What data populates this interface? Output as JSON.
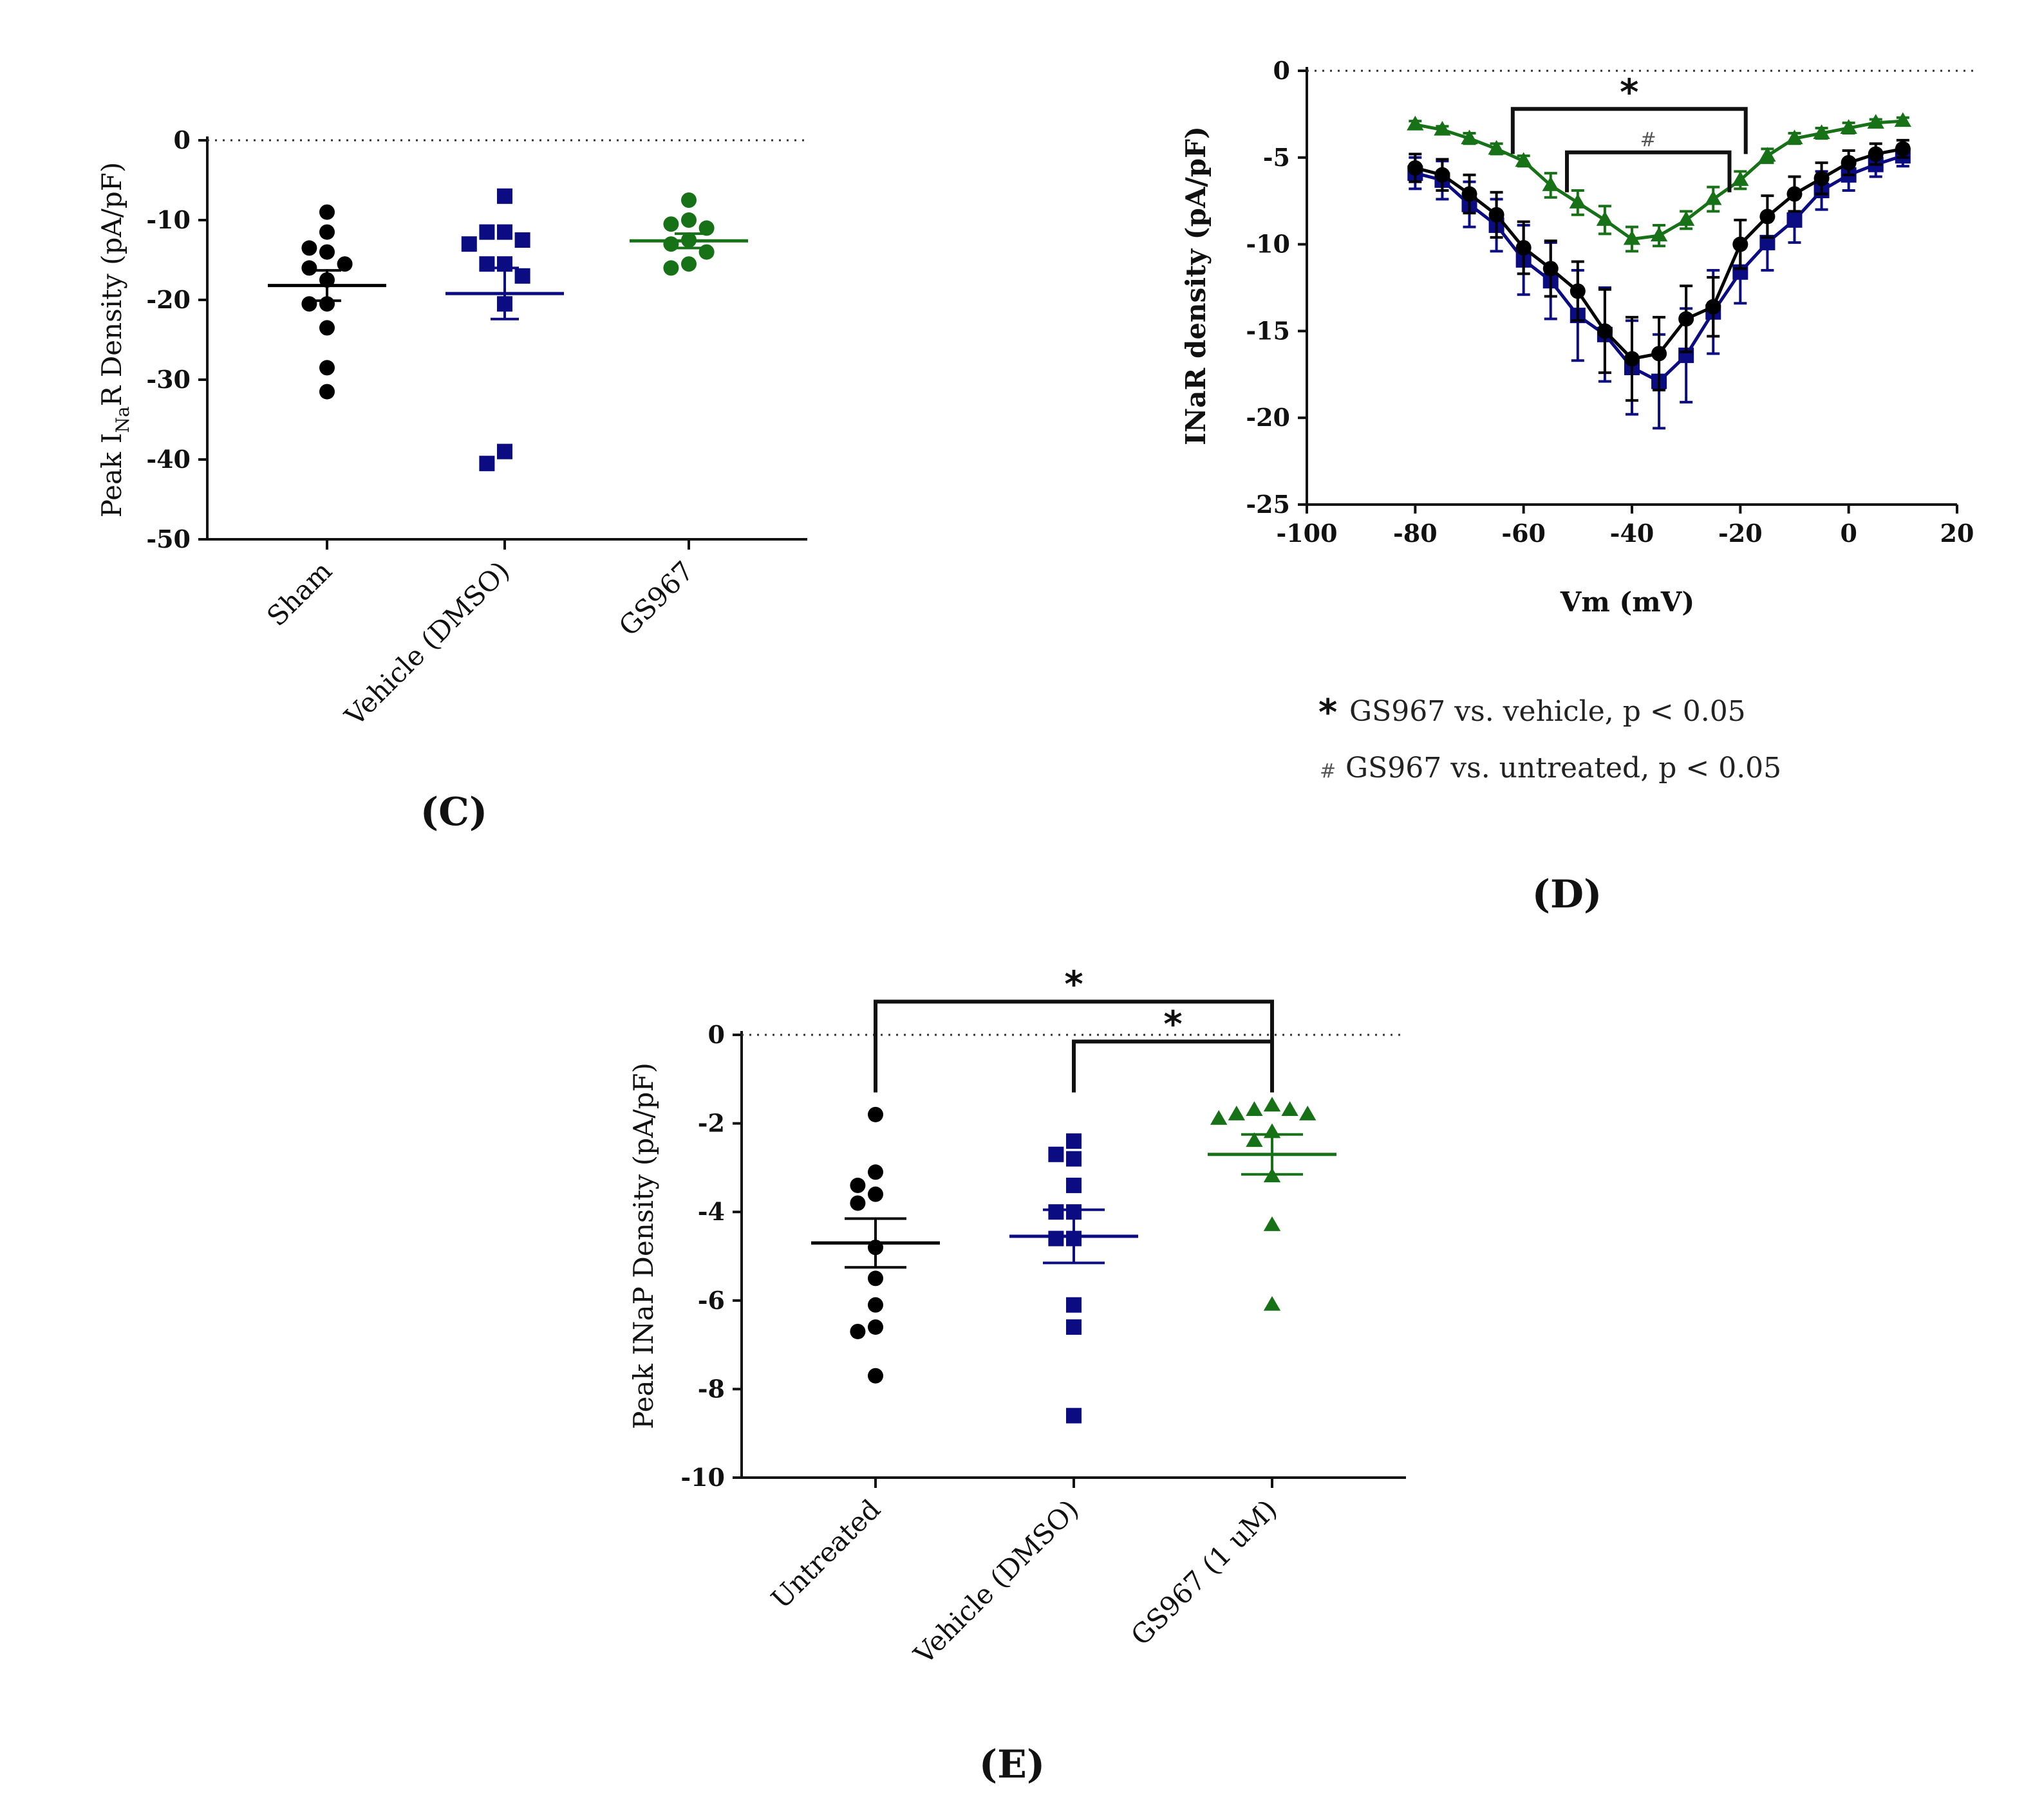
{
  "colors": {
    "sham": "#000000",
    "vehicle": "#0b0b82",
    "gs967": "#177117",
    "text": "#111111"
  },
  "chart_data": [
    {
      "id": "C",
      "panel_label": "(C)",
      "type": "scatter",
      "ylabel": "Peak I",
      "ylabel_sub": "Na",
      "ylabel_rest": "R Density (pA/pF)",
      "ylim": [
        -50,
        0
      ],
      "yticks": [
        0,
        -10,
        -20,
        -30,
        -40,
        -50
      ],
      "ytick_labels": [
        "0",
        "-10",
        "-20",
        "-30",
        "-40",
        "-50"
      ],
      "zero_line": "dotted",
      "categories": [
        "Sham",
        "Vehicle (DMSO)",
        "GS967"
      ],
      "series": [
        {
          "name": "Sham",
          "marker": "circle",
          "color_key": "sham",
          "values": [
            -9,
            -11.5,
            -13.5,
            -14,
            -15.5,
            -16,
            -17.5,
            -20.5,
            -20.5,
            -23.5,
            -28.5,
            -31.5
          ],
          "mean": -18.2,
          "sem": 1.9
        },
        {
          "name": "Vehicle (DMSO)",
          "marker": "square",
          "color_key": "vehicle",
          "values": [
            -7,
            -11.5,
            -11.5,
            -12.5,
            -13,
            -15.5,
            -15.5,
            -17,
            -20.5,
            -39,
            -40.5
          ],
          "mean": -19.2,
          "sem": 3.2
        },
        {
          "name": "GS967",
          "marker": "circle",
          "color_key": "gs967",
          "values": [
            -7.5,
            -10,
            -10.5,
            -11,
            -12.5,
            -13,
            -14,
            -15.5,
            -16
          ],
          "mean": -12.6,
          "sem": 0.9
        }
      ]
    },
    {
      "id": "D",
      "panel_label": "(D)",
      "type": "line",
      "xlabel": "Vm (mV)",
      "ylabel": "INaR density (pA/pF)",
      "xlim": [
        -100,
        20
      ],
      "ylim": [
        -25,
        0
      ],
      "xticks": [
        -100,
        -80,
        -60,
        -40,
        -20,
        0,
        20
      ],
      "xtick_labels": [
        "-100",
        "-80",
        "-60",
        "-40",
        "-20",
        "0",
        "20"
      ],
      "yticks": [
        0,
        -5,
        -10,
        -15,
        -20,
        -25
      ],
      "ytick_labels": [
        "0",
        "-5",
        "-10",
        "-15",
        "-20",
        "-25"
      ],
      "zero_line": "dotted",
      "x": [
        -80,
        -75,
        -70,
        -65,
        -60,
        -55,
        -50,
        -45,
        -40,
        -35,
        -30,
        -25,
        -20,
        -15,
        -10,
        -5,
        0,
        5,
        10
      ],
      "series": [
        {
          "name": "Vehicle (DMSO)",
          "marker": "square",
          "color_key": "vehicle",
          "values": [
            -5.9,
            -6.3,
            -7.7,
            -8.9,
            -10.9,
            -12.1,
            -14.1,
            -15.2,
            -17.1,
            -17.9,
            -16.4,
            -13.9,
            -11.6,
            -9.9,
            -8.6,
            -6.9,
            -6.0,
            -5.4,
            -4.9
          ],
          "errors": [
            0.9,
            1.1,
            1.3,
            1.5,
            2.0,
            2.2,
            2.6,
            2.7,
            2.7,
            2.7,
            2.7,
            2.4,
            1.8,
            1.6,
            1.3,
            1.1,
            0.9,
            0.7,
            0.6
          ]
        },
        {
          "name": "Untreated",
          "marker": "circle",
          "color_key": "sham",
          "values": [
            -5.6,
            -6.0,
            -7.1,
            -8.3,
            -10.2,
            -11.4,
            -12.7,
            -15.0,
            -16.6,
            -16.3,
            -14.3,
            -13.6,
            -10.0,
            -8.4,
            -7.1,
            -6.2,
            -5.3,
            -4.8,
            -4.5
          ],
          "errors": [
            0.8,
            0.9,
            1.1,
            1.3,
            1.5,
            1.6,
            1.7,
            2.4,
            2.4,
            2.1,
            1.9,
            1.7,
            1.4,
            1.2,
            1.0,
            0.9,
            0.7,
            0.6,
            0.5
          ]
        },
        {
          "name": "GS967",
          "marker": "triangle",
          "color_key": "gs967",
          "values": [
            -3.1,
            -3.4,
            -3.9,
            -4.5,
            -5.2,
            -6.6,
            -7.6,
            -8.6,
            -9.7,
            -9.5,
            -8.6,
            -7.4,
            -6.3,
            -4.9,
            -3.9,
            -3.6,
            -3.3,
            -3.0,
            -2.9
          ],
          "errors": [
            0.2,
            0.2,
            0.3,
            0.3,
            0.3,
            0.7,
            0.7,
            0.8,
            0.7,
            0.6,
            0.5,
            0.7,
            0.5,
            0.4,
            0.3,
            0.3,
            0.3,
            0.2,
            0.2
          ]
        }
      ],
      "significance": [
        {
          "symbol": "*",
          "x_from": -62,
          "x_to": -19,
          "bar_y": -2.2,
          "drop_y": -4.8,
          "label_y": -1.5
        },
        {
          "symbol": "#",
          "x_from": -52,
          "x_to": -22,
          "bar_y": -4.7,
          "drop_y": -7.0,
          "label_y": -4.2
        }
      ],
      "legend": [
        {
          "symbol": "*",
          "text": "GS967 vs. vehicle, p < 0.05"
        },
        {
          "symbol": "#",
          "text": "GS967 vs. untreated, p < 0.05"
        }
      ]
    },
    {
      "id": "E",
      "panel_label": "(E)",
      "type": "scatter",
      "ylabel": "Peak INaP Density (pA/pF)",
      "ylim": [
        -10,
        0
      ],
      "yticks": [
        0,
        -2,
        -4,
        -6,
        -8,
        -10
      ],
      "ytick_labels": [
        "0",
        "-2",
        "-4",
        "-6",
        "-8",
        "-10"
      ],
      "zero_line": "dotted",
      "categories": [
        "Untreated",
        "Vehicle (DMSO)",
        "GS967 (1 uM)"
      ],
      "series": [
        {
          "name": "Untreated",
          "marker": "circle",
          "color_key": "sham",
          "values": [
            -1.8,
            -3.1,
            -3.4,
            -3.6,
            -3.8,
            -4.8,
            -5.5,
            -6.1,
            -6.6,
            -6.7,
            -7.7
          ],
          "mean": -4.7,
          "sem": 0.55
        },
        {
          "name": "Vehicle (DMSO)",
          "marker": "square",
          "color_key": "vehicle",
          "values": [
            -2.4,
            -2.7,
            -2.8,
            -3.4,
            -4.0,
            -4.0,
            -4.6,
            -4.6,
            -6.1,
            -6.6,
            -8.6
          ],
          "mean": -4.55,
          "sem": 0.6
        },
        {
          "name": "GS967 (1 uM)",
          "marker": "triangle",
          "color_key": "gs967",
          "values": [
            -1.6,
            -1.7,
            -1.7,
            -1.8,
            -1.8,
            -1.9,
            -2.2,
            -2.4,
            -3.2,
            -4.3,
            -6.1
          ],
          "mean": -2.7,
          "sem": 0.45
        }
      ],
      "significance": [
        {
          "symbol": "*",
          "from": 0,
          "to": 2,
          "bar_y": 0.75,
          "drop_to": -1.3
        },
        {
          "symbol": "*",
          "from": 1,
          "to": 2,
          "bar_y": -0.15,
          "drop_to": -1.3
        }
      ]
    }
  ]
}
